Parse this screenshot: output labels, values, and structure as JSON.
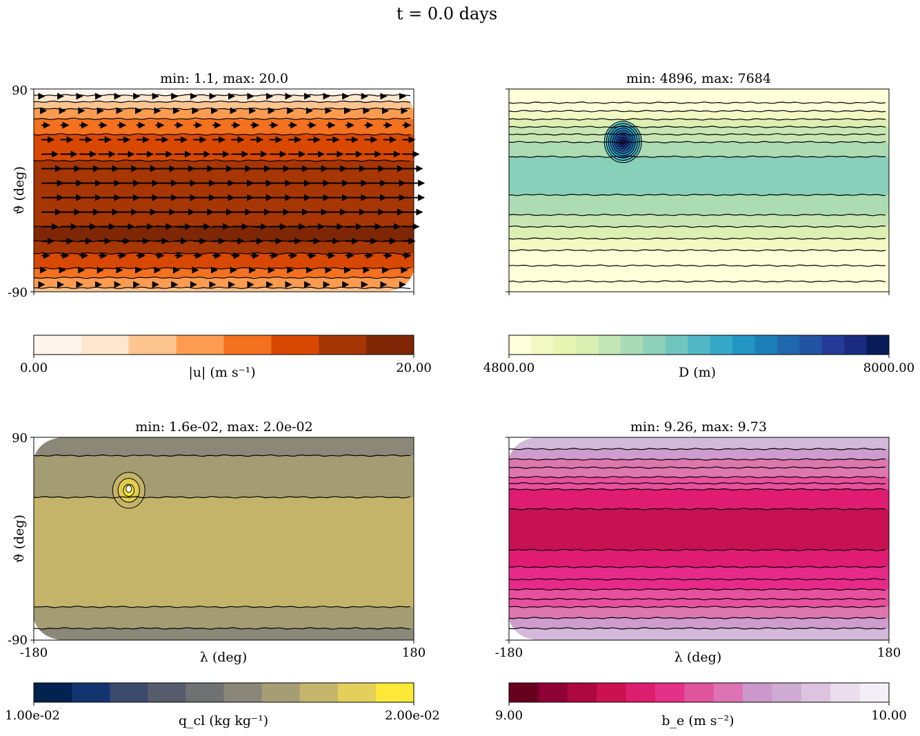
{
  "figure": {
    "title": "t = 0.0 days"
  },
  "chart_data": [
    {
      "type": "heatmap",
      "field": "speed",
      "title": "min: 1.1, max: 20.0",
      "xlabel": "",
      "ylabel": "ϑ (deg)",
      "xlim": [
        -180,
        180
      ],
      "ylim": [
        -90,
        90
      ],
      "x_ticks": [],
      "y_ticks": [
        "90",
        "-90"
      ],
      "has_arrows": true,
      "bands": [
        {
          "y": 88.2,
          "color": "#fff5eb"
        },
        {
          "y": 84.5,
          "color": "#fee6ce"
        },
        {
          "y": 78.7,
          "color": "#fdc48f"
        },
        {
          "y": 72.4,
          "color": "#fd9c51"
        },
        {
          "y": 63.5,
          "color": "#f4711f"
        },
        {
          "y": 49.7,
          "color": "#d94801"
        },
        {
          "y": 26.4,
          "color": "#a63603"
        },
        {
          "y": -32.2,
          "color": "#7f2704"
        },
        {
          "y": -45.0,
          "color": "#a63603"
        },
        {
          "y": -56.0,
          "color": "#d94801"
        },
        {
          "y": -69.2,
          "color": "#f4711f"
        },
        {
          "y": -77.5,
          "color": "#fd9c51"
        },
        {
          "y": -86.5,
          "color": "#fdc48f"
        },
        {
          "y": -90,
          "color": "#fee6ce"
        }
      ],
      "contours": [
        84.5,
        78.7,
        72.4,
        63.5,
        49.7,
        26.4,
        -32.2,
        -45.0,
        -56.0,
        -69.2,
        -77.5,
        -86.5
      ],
      "cap_color": "#ffffff",
      "colorbar": {
        "label": "|u| (m s⁻¹)",
        "min_label": "0.00",
        "max_label": "20.00",
        "colors": [
          "#fff5eb",
          "#fee6ce",
          "#fdc48f",
          "#fd9c51",
          "#f4711f",
          "#d94801",
          "#a63603",
          "#7f2704"
        ]
      }
    },
    {
      "type": "heatmap",
      "field": "depth",
      "title": "min: 4896, max: 7684",
      "xlabel": "",
      "ylabel": "",
      "xlim": [
        -180,
        180
      ],
      "ylim": [
        -90,
        90
      ],
      "x_ticks": [],
      "y_ticks": [],
      "bands": [
        {
          "y": 90,
          "color": "#ffffd9"
        },
        {
          "y": 70.4,
          "color": "#f2f9c3"
        },
        {
          "y": 63.1,
          "color": "#deefb2"
        },
        {
          "y": 56.3,
          "color": "#c8e6b4"
        },
        {
          "y": 42.8,
          "color": "#acdcb4"
        },
        {
          "y": 29.9,
          "color": "#88d0b9"
        },
        {
          "y": -4.0,
          "color": "#acdcb4"
        },
        {
          "y": -21.8,
          "color": "#c8e6b4"
        },
        {
          "y": -32.2,
          "color": "#deefb2"
        },
        {
          "y": -42.8,
          "color": "#f2f9c3"
        },
        {
          "y": -53.2,
          "color": "#ffffd9"
        }
      ],
      "contours": [
        77.8,
        70.4,
        63.1,
        56.3,
        49.7,
        42.8,
        29.9,
        -4.0,
        -21.8,
        -32.2,
        -42.8,
        -53.2,
        -66.8,
        -80.8
      ],
      "vortex": {
        "lon": -72,
        "lat": 43,
        "colors": [
          "#6ec6bb",
          "#4db3c6",
          "#34a1c9",
          "#2288bd",
          "#1f6fb1",
          "#225ea8",
          "#253c9a",
          "#182d75",
          "#081d58"
        ]
      },
      "cap_color": "#ffffd9",
      "colorbar": {
        "label": "D (m)",
        "min_label": "4800.00",
        "max_label": "8000.00",
        "colors": [
          "#ffffd9",
          "#f2f9c3",
          "#e6f5b1",
          "#d8f0b2",
          "#c3e6b5",
          "#a8dbb6",
          "#8ed1ba",
          "#70c6bd",
          "#51b8c6",
          "#38a8c9",
          "#2295c3",
          "#1d7fb8",
          "#2068ac",
          "#2353a2",
          "#253b97",
          "#1b2b80",
          "#081d58"
        ]
      }
    },
    {
      "type": "heatmap",
      "field": "cloud",
      "title": "min: 1.6e-02, max: 2.0e-02",
      "xlabel": "λ (deg)",
      "ylabel": "ϑ (deg)",
      "xlim": [
        -180,
        180
      ],
      "ylim": [
        -90,
        90
      ],
      "x_ticks": [
        "-180",
        "180"
      ],
      "y_ticks": [
        "90",
        "-90"
      ],
      "bands": [
        {
          "y": 90,
          "color": "#8b8878"
        },
        {
          "y": 73.8,
          "color": "#a49c72"
        },
        {
          "y": 36.8,
          "color": "#c4b46a"
        },
        {
          "y": -60.5,
          "color": "#a49c72"
        },
        {
          "y": -79.6,
          "color": "#8b8878"
        }
      ],
      "contours": [
        73.8,
        36.8,
        -60.5,
        -79.6
      ],
      "vortex": {
        "lon": -90,
        "lat": 43,
        "colors": [
          "#c4b46a",
          "#e3cd4f",
          "#fde938"
        ]
      },
      "cap_color": "#ffffff",
      "colorbar": {
        "label": "q_cl (kg kg⁻¹)",
        "min_label": "1.00e-02",
        "max_label": "2.00e-02",
        "colors": [
          "#00224e",
          "#123570",
          "#3b496c",
          "#575c6d",
          "#707173",
          "#8a8779",
          "#a69d75",
          "#c4b56c",
          "#e4cf5b",
          "#fee838"
        ]
      }
    },
    {
      "type": "heatmap",
      "field": "buoyancy",
      "title": "min: 9.26, max: 9.73",
      "xlabel": "λ (deg)",
      "ylabel": "",
      "xlim": [
        -180,
        180
      ],
      "ylim": [
        -90,
        90
      ],
      "x_ticks": [
        "-180",
        "180"
      ],
      "y_ticks": [],
      "bands": [
        {
          "y": 90,
          "color": "#d4b9da"
        },
        {
          "y": 79.6,
          "color": "#ce9ccd"
        },
        {
          "y": 70.4,
          "color": "#de77ae"
        },
        {
          "y": 54.7,
          "color": "#e7509c"
        },
        {
          "y": 43.8,
          "color": "#df1c71"
        },
        {
          "y": 26.4,
          "color": "#c71153"
        },
        {
          "y": -10.0,
          "color": "#df1c71"
        },
        {
          "y": -25.1,
          "color": "#e7298a"
        },
        {
          "y": -45.0,
          "color": "#e7509c"
        },
        {
          "y": -60.5,
          "color": "#de77ae"
        },
        {
          "y": -70.4,
          "color": "#ce9ccd"
        },
        {
          "y": -79.6,
          "color": "#d4b9da"
        }
      ],
      "contours": [
        79.6,
        70.4,
        63.1,
        54.7,
        49.1,
        43.8,
        26.4,
        -10.0,
        -25.1,
        -36.0,
        -45.0,
        -53.6,
        -60.5,
        -70.4,
        -79.6
      ],
      "cap_color": "#ffffff",
      "colorbar": {
        "label": "b_e (m s⁻²)",
        "min_label": "9.00",
        "max_label": "10.00",
        "colors": [
          "#67001f",
          "#8f0035",
          "#ad0840",
          "#ca1250",
          "#dd1d6e",
          "#e43187",
          "#e0549c",
          "#dc74b3",
          "#ca98ca",
          "#d0abd3",
          "#ddc3df",
          "#ebdeec",
          "#f4eff6"
        ]
      }
    }
  ]
}
